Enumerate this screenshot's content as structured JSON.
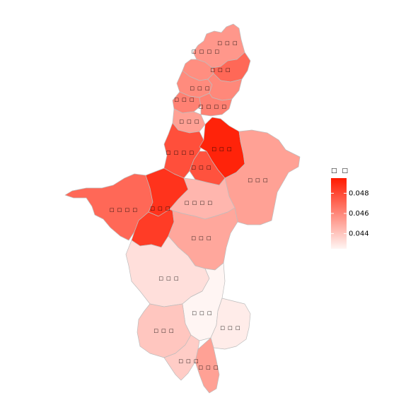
{
  "map": {
    "legend": {
      "title": "□ □",
      "ticks": [
        {
          "label": "0.048",
          "value": 0.048
        },
        {
          "label": "0.046",
          "value": 0.046
        },
        {
          "label": "0.044",
          "value": 0.044
        }
      ],
      "range": [
        0.0425,
        0.0495
      ],
      "color_low": "#fff5f3",
      "color_high": "#ff1a00"
    },
    "regions": [
      {
        "id": "r01",
        "label": "□ □ □",
        "value": 0.0455
      },
      {
        "id": "r02",
        "label": "□ □ □ □",
        "value": 0.0458
      },
      {
        "id": "r03",
        "label": "□ □ □",
        "value": 0.047
      },
      {
        "id": "r04",
        "label": "□ □ □",
        "value": 0.0459
      },
      {
        "id": "r05",
        "label": "□ □ □",
        "value": 0.046
      },
      {
        "id": "r06",
        "label": "□ □ □ □",
        "value": 0.0462
      },
      {
        "id": "r07",
        "label": "□ □ □",
        "value": 0.0462
      },
      {
        "id": "r08",
        "label": "□ □ □ □",
        "value": 0.0478
      },
      {
        "id": "r09",
        "label": "□ □ □",
        "value": 0.0492
      },
      {
        "id": "r10",
        "label": "□ □ □",
        "value": 0.0477
      },
      {
        "id": "r11",
        "label": "□ □ □",
        "value": 0.0452
      },
      {
        "id": "r12",
        "label": "□ □ □ □",
        "value": 0.047
      },
      {
        "id": "r13",
        "label": "□ □ □",
        "value": 0.0487
      },
      {
        "id": "r14",
        "label": "□ □ □ □",
        "value": 0.0445
      },
      {
        "id": "r15",
        "label": "□ □ □",
        "value": 0.0484
      },
      {
        "id": "r16",
        "label": "□ □ □",
        "value": 0.045
      },
      {
        "id": "r17",
        "label": "□ □ □",
        "value": 0.0432
      },
      {
        "id": "r18",
        "label": "□ □ □",
        "value": 0.0425
      },
      {
        "id": "r19",
        "label": "□ □ □",
        "value": 0.044
      },
      {
        "id": "r20",
        "label": "□ □ □",
        "value": 0.0428
      },
      {
        "id": "r21",
        "label": "□ □ □",
        "value": 0.0438
      },
      {
        "id": "r22",
        "label": "□ □ □",
        "value": 0.0452
      }
    ]
  }
}
